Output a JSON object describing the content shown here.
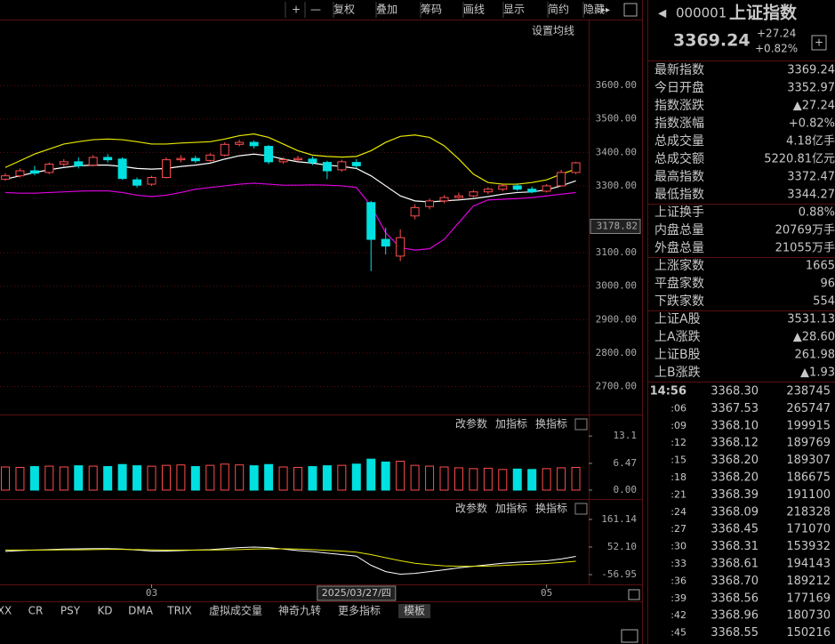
{
  "toolbar": [
    "+",
    "—",
    "复权",
    "叠加",
    "筹码",
    "画线",
    "显示",
    "简约",
    "隐藏"
  ],
  "ma_setting": "设置均线",
  "indicator_buttons": [
    "改参数",
    "加指标",
    "换指标"
  ],
  "chart_data": [
    {
      "type": "candlestick",
      "categories": [
        null,
        null,
        null,
        null,
        null,
        null,
        null,
        null,
        null,
        null,
        "03",
        null,
        null,
        null,
        null,
        null,
        null,
        null,
        null,
        null,
        null,
        null,
        null,
        null,
        "2025/03/27/四",
        null,
        null,
        null,
        null,
        null,
        null,
        null,
        null,
        null,
        null,
        null,
        null,
        "05",
        null,
        null
      ],
      "open": [
        3320,
        3330,
        3345,
        3340,
        3365,
        3372,
        3362,
        3385,
        3380,
        3318,
        3305,
        3325,
        3378,
        3382,
        3376,
        3392,
        3424,
        3430,
        3418,
        3372,
        3378,
        3380,
        3370,
        3348,
        3370,
        3250,
        3140,
        3090,
        3210,
        3238,
        3255,
        3265,
        3270,
        3282,
        3290,
        3300,
        3290,
        3284,
        3300,
        3340
      ],
      "close": [
        3330,
        3345,
        3338,
        3365,
        3372,
        3360,
        3385,
        3378,
        3322,
        3302,
        3325,
        3378,
        3382,
        3375,
        3392,
        3424,
        3430,
        3420,
        3372,
        3378,
        3382,
        3370,
        3345,
        3372,
        3360,
        3140,
        3120,
        3145,
        3235,
        3255,
        3265,
        3270,
        3282,
        3290,
        3300,
        3290,
        3282,
        3300,
        3340,
        3369
      ],
      "high": [
        3338,
        3352,
        3360,
        3370,
        3380,
        3385,
        3392,
        3395,
        3385,
        3325,
        3330,
        3385,
        3392,
        3390,
        3398,
        3430,
        3438,
        3436,
        3422,
        3385,
        3390,
        3388,
        3375,
        3378,
        3380,
        3255,
        3175,
        3170,
        3245,
        3262,
        3272,
        3280,
        3288,
        3296,
        3305,
        3308,
        3298,
        3305,
        3348,
        3372
      ],
      "low": [
        3315,
        3325,
        3332,
        3335,
        3358,
        3352,
        3358,
        3370,
        3318,
        3295,
        3300,
        3322,
        3370,
        3368,
        3372,
        3388,
        3418,
        3412,
        3365,
        3366,
        3372,
        3362,
        3320,
        3342,
        3352,
        3045,
        3095,
        3075,
        3200,
        3230,
        3248,
        3258,
        3265,
        3275,
        3284,
        3285,
        3278,
        3280,
        3298,
        3335
      ],
      "up_color": "#ff4d4d",
      "down_color": "#00e0e0",
      "series": [
        {
          "color": "#e8e800",
          "values": [
            3355,
            3375,
            3395,
            3410,
            3425,
            3432,
            3438,
            3440,
            3438,
            3432,
            3425,
            3425,
            3428,
            3430,
            3432,
            3440,
            3450,
            3455,
            3445,
            3425,
            3405,
            3392,
            3388,
            3386,
            3388,
            3405,
            3430,
            3448,
            3452,
            3445,
            3420,
            3380,
            3335,
            3310,
            3305,
            3305,
            3310,
            3318,
            3335,
            3350
          ]
        },
        {
          "color": "#ffffff",
          "values": [
            3320,
            3330,
            3340,
            3348,
            3355,
            3360,
            3362,
            3362,
            3358,
            3352,
            3350,
            3352,
            3358,
            3362,
            3368,
            3380,
            3390,
            3395,
            3390,
            3380,
            3372,
            3368,
            3362,
            3358,
            3352,
            3330,
            3300,
            3270,
            3255,
            3252,
            3255,
            3258,
            3262,
            3268,
            3275,
            3280,
            3282,
            3288,
            3300,
            3315
          ]
        },
        {
          "color": "#e000e0",
          "values": [
            3280,
            3278,
            3278,
            3280,
            3282,
            3284,
            3285,
            3285,
            3280,
            3272,
            3268,
            3272,
            3280,
            3290,
            3295,
            3300,
            3305,
            3308,
            3305,
            3302,
            3302,
            3303,
            3302,
            3300,
            3295,
            3240,
            3160,
            3115,
            3108,
            3112,
            3140,
            3190,
            3240,
            3258,
            3260,
            3262,
            3265,
            3270,
            3275,
            3280
          ]
        }
      ],
      "ylim": [
        2619,
        3736
      ],
      "yticks": [
        {
          "value": 3600,
          "label": "3600.00"
        },
        {
          "value": 3500,
          "label": "3500.00"
        },
        {
          "value": 3400,
          "label": "3400.00"
        },
        {
          "value": 3300,
          "label": "3300.00"
        },
        {
          "value": 3100,
          "label": "3100.00"
        },
        {
          "value": 3000,
          "label": "3000.00"
        },
        {
          "value": 2900,
          "label": "2900.00"
        },
        {
          "value": 2800,
          "label": "2800.00"
        },
        {
          "value": 2700,
          "label": "2700.00"
        }
      ],
      "cursor": {
        "value": 3178.82,
        "label": "3178.82"
      },
      "grid": true
    },
    {
      "type": "bar",
      "values": [
        5.6,
        5.5,
        5.7,
        5.8,
        5.6,
        5.9,
        5.8,
        5.7,
        6.2,
        5.9,
        5.8,
        6.0,
        6.1,
        5.7,
        6.0,
        6.3,
        6.1,
        5.9,
        6.2,
        5.6,
        5.5,
        5.7,
        5.9,
        6.0,
        6.3,
        7.5,
        6.8,
        7.0,
        6.0,
        5.8,
        5.6,
        5.4,
        5.2,
        5.3,
        5.0,
        5.1,
        5.0,
        5.2,
        5.4,
        5.5
      ],
      "ylim": [
        0,
        14
      ],
      "yticks": [
        {
          "value": 0,
          "label": "0.00"
        },
        6.47,
        13.1
      ]
    },
    {
      "type": "line",
      "series": [
        {
          "color": "#ffffff",
          "values": [
            35,
            38,
            40,
            42,
            44,
            45,
            46,
            46,
            44,
            40,
            36,
            36,
            38,
            40,
            42,
            46,
            50,
            52,
            50,
            44,
            38,
            34,
            28,
            22,
            16,
            -20,
            -45,
            -55,
            -52,
            -45,
            -38,
            -30,
            -24,
            -18,
            -12,
            -8,
            -5,
            -2,
            5,
            15
          ]
        },
        {
          "color": "#e8e800",
          "values": [
            40,
            40,
            40,
            40,
            41,
            41,
            42,
            43,
            43,
            42,
            41,
            40,
            40,
            40,
            40,
            41,
            42,
            44,
            45,
            45,
            44,
            42,
            39,
            36,
            32,
            22,
            10,
            -2,
            -12,
            -18,
            -22,
            -24,
            -24,
            -23,
            -21,
            -18,
            -16,
            -13,
            -9,
            -4
          ]
        }
      ],
      "ylim": [
        -92,
        189
      ],
      "yticks": [
        161.14,
        {
          "value": 52.1,
          "label": "52.10"
        },
        -56.95
      ]
    }
  ],
  "tabs": [
    "XX",
    "CR",
    "PSY",
    "KD",
    "DMA",
    "TRIX",
    "虚拟成交量",
    "神奇九转",
    "更多指标",
    "模板"
  ],
  "quote": {
    "code": "000001",
    "name": "上证指数",
    "price": "3369.24",
    "change": "+27.24",
    "change_pct": "+0.82%"
  },
  "stats": [
    [
      {
        "label": "最新指数",
        "value": "3369.24",
        "color": "#ff4d4d"
      },
      {
        "label": "今日开盘",
        "value": "3352.97",
        "color": "#ff4d4d"
      },
      {
        "label": "指数涨跌",
        "value": "▲27.24",
        "color": "#ff4d4d"
      },
      {
        "label": "指数涨幅",
        "value": "+0.82%",
        "color": "#ff4d4d"
      },
      {
        "label": "总成交量",
        "value": "4.18亿手",
        "color": "#ffffff"
      },
      {
        "label": "总成交额",
        "value": "5220.81亿元",
        "color": "#00e0e0"
      },
      {
        "label": "最高指数",
        "value": "3372.47",
        "color": "#ff4d4d"
      },
      {
        "label": "最低指数",
        "value": "3344.27",
        "color": "#ff4d4d"
      }
    ],
    [
      {
        "label": "上证换手",
        "value": "0.88%",
        "color": "#ffffff"
      },
      {
        "label": "内盘总量",
        "value": "20769万手",
        "color": "#33dd33"
      },
      {
        "label": "外盘总量",
        "value": "21055万手",
        "color": "#ff4d4d"
      }
    ],
    [
      {
        "label": "上涨家数",
        "value": "1665",
        "color": "#ff4d4d"
      },
      {
        "label": "平盘家数",
        "value": "96",
        "color": "#ffffff"
      },
      {
        "label": "下跌家数",
        "value": "554",
        "color": "#33dd33"
      }
    ],
    [
      {
        "label": "上证A股",
        "value": "3531.13",
        "color": "#ff4d4d"
      },
      {
        "label": "上A涨跌",
        "value": "▲28.60",
        "color": "#ff4d4d"
      },
      {
        "label": "上证B股",
        "value": "261.98",
        "color": "#ff4d4d"
      },
      {
        "label": "上B涨跌",
        "value": "▲1.93",
        "color": "#ff4d4d"
      }
    ]
  ],
  "ticks": [
    {
      "time": "14:56",
      "price": "3368.30",
      "volume": "238745",
      "color": "#33dd33"
    },
    {
      "time": ":06",
      "price": "3367.53",
      "volume": "265747",
      "color": "#33dd33"
    },
    {
      "time": ":09",
      "price": "3368.10",
      "volume": "199915",
      "color": "#ff4d4d"
    },
    {
      "time": ":12",
      "price": "3368.12",
      "volume": "189769",
      "color": "#ff4d4d"
    },
    {
      "time": ":15",
      "price": "3368.20",
      "volume": "189307",
      "color": "#ff4d4d"
    },
    {
      "time": ":18",
      "price": "3368.20",
      "volume": "186675",
      "color": "#ff4d4d"
    },
    {
      "time": ":21",
      "price": "3368.39",
      "volume": "191100",
      "color": "#ff4d4d"
    },
    {
      "time": ":24",
      "price": "3368.09",
      "volume": "218328",
      "color": "#33dd33"
    },
    {
      "time": ":27",
      "price": "3368.45",
      "volume": "171070",
      "color": "#ff4d4d"
    },
    {
      "time": ":30",
      "price": "3368.31",
      "volume": "153932",
      "color": "#33dd33"
    },
    {
      "time": ":33",
      "price": "3368.61",
      "volume": "194143",
      "color": "#ff4d4d"
    },
    {
      "time": ":36",
      "price": "3368.70",
      "volume": "189212",
      "color": "#ff4d4d"
    },
    {
      "time": ":39",
      "price": "3368.56",
      "volume": "177169",
      "color": "#33dd33"
    },
    {
      "time": ":42",
      "price": "3368.96",
      "volume": "180730",
      "color": "#ff4d4d"
    },
    {
      "time": ":45",
      "price": "3368.55",
      "volume": "150216",
      "color": "#ff4d4d"
    }
  ]
}
